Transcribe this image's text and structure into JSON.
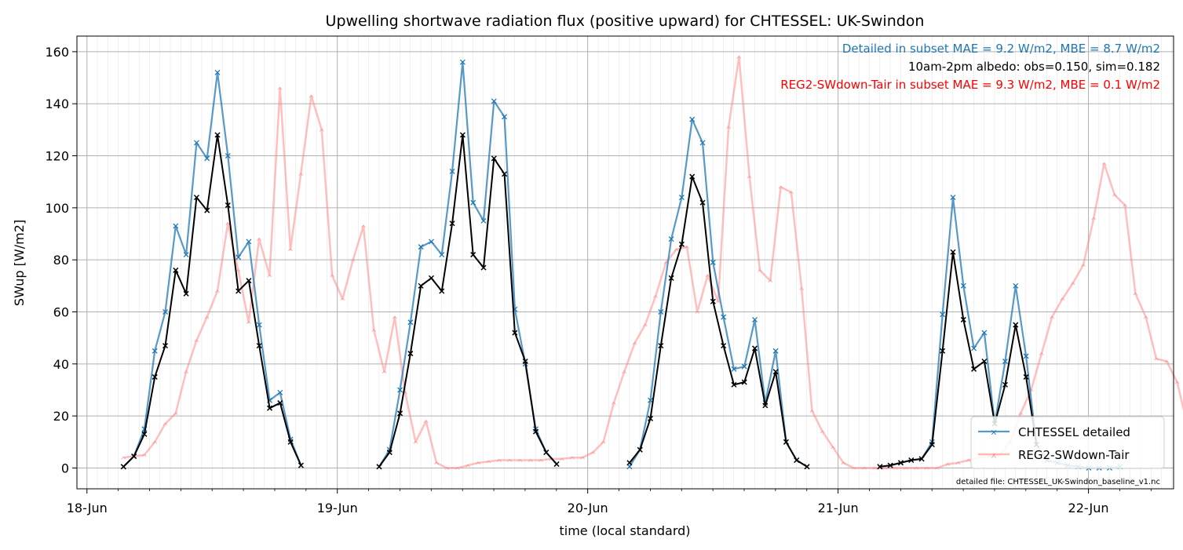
{
  "chart_data": {
    "type": "line",
    "title": "Upwelling shortwave radiation flux (positive upward) for CHTESSEL: UK-Swindon",
    "xlabel": "time (local standard)",
    "ylabel": "SWup [W/m2]",
    "xlim": [
      -0.04,
      4.34
    ],
    "ylim": [
      -8,
      166
    ],
    "x_unit": "days since 18-Jun 00:00",
    "yticks": [
      0,
      20,
      40,
      60,
      80,
      100,
      120,
      140,
      160
    ],
    "xticks": [
      {
        "x": 0,
        "label": "18-Jun"
      },
      {
        "x": 1,
        "label": "19-Jun"
      },
      {
        "x": 2,
        "label": "20-Jun"
      },
      {
        "x": 3,
        "label": "21-Jun"
      },
      {
        "x": 4,
        "label": "22-Jun"
      }
    ],
    "grid": "major and minor",
    "legend": {
      "position": "bottom-right"
    },
    "annotations": {
      "line1": "Detailed in subset MAE = 9.2 W/m2, MBE = 8.7 W/m2",
      "line2": "10am-2pm albedo: obs=0.150, sim=0.182",
      "line3": "REG2-SWdown-Tair in subset MAE = 9.3 W/m2, MBE = 0.1 W/m2",
      "footer": "detailed file: CHTESSEL_UK-Swindon_baseline_v1.nc"
    },
    "series": [
      {
        "name": "CHTESSEL detailed",
        "color": "#1f77b4",
        "segments": [
          {
            "x0": 0.146,
            "y": [
              0.5,
              4.5,
              15,
              45,
              60,
              93,
              82,
              125,
              119,
              152,
              120,
              81,
              87,
              55,
              26,
              29,
              11,
              1
            ]
          },
          {
            "x0": 1.167,
            "y": [
              0.5,
              7,
              30,
              56,
              85,
              87,
              82,
              114,
              156,
              102,
              95,
              141,
              135,
              61,
              40,
              15,
              6,
              1.5
            ]
          },
          {
            "x0": 2.167,
            "y": [
              0.5,
              7,
              26,
              60,
              88,
              104,
              134,
              125,
              79,
              58,
              38,
              39,
              57,
              25,
              45,
              10,
              3,
              0.5
            ]
          },
          {
            "x0": 3.167,
            "y": [
              0.5,
              1,
              2,
              3,
              3.5,
              10,
              59,
              104,
              70,
              46,
              52,
              17,
              41,
              70,
              43,
              9,
              3,
              2,
              1,
              0.5,
              0,
              0,
              0,
              0.5
            ]
          }
        ]
      },
      {
        "name": "REG2-SWdown-Tair",
        "color": "#ff7f7f",
        "y": [
          4,
          4.5,
          5,
          10,
          17,
          21,
          37,
          49,
          58,
          68,
          94,
          76,
          56,
          88,
          74,
          146,
          84,
          113,
          143,
          130,
          74,
          65,
          80,
          93,
          53,
          37,
          58,
          29,
          10,
          18,
          2,
          0,
          0,
          1,
          2,
          2.5,
          3,
          3,
          3,
          3,
          3,
          3.5,
          3.5,
          4,
          4,
          6,
          10,
          25,
          37,
          48,
          55,
          66,
          79,
          84,
          85,
          60,
          74,
          64,
          131,
          158,
          112,
          76,
          72,
          108,
          106,
          69,
          22,
          14,
          8,
          2,
          0,
          0,
          0,
          0,
          0,
          0,
          0,
          0,
          0,
          1.5,
          2,
          3,
          4,
          4.5,
          5,
          10,
          21,
          30,
          44,
          58,
          65,
          71,
          78,
          96,
          117,
          105,
          101,
          67,
          58,
          42,
          41,
          33,
          16,
          21,
          45,
          48,
          4,
          29,
          41,
          18,
          5,
          2,
          1,
          1,
          0,
          0,
          0,
          0,
          0,
          0,
          0,
          0,
          0,
          2.5,
          3,
          3,
          3,
          3,
          2.5,
          2.5,
          2.5,
          2.5,
          2.5,
          2.5,
          3,
          5,
          30,
          52,
          74,
          88,
          67,
          27,
          46,
          44,
          16,
          23,
          43,
          85,
          40,
          20,
          4,
          1,
          1,
          1,
          0.5,
          0.5,
          0.5,
          0.5
        ]
      },
      {
        "name": "",
        "color": "#000000",
        "segments": [
          {
            "x0": 0.146,
            "y": [
              0.5,
              4.5,
              13,
              35,
              47,
              76,
              67,
              104,
              99,
              128,
              101,
              68,
              72,
              47,
              23,
              25,
              10,
              1
            ]
          },
          {
            "x0": 1.167,
            "y": [
              0.5,
              6,
              21,
              44,
              70,
              73,
              68,
              94,
              128,
              82,
              77,
              119,
              113,
              52,
              41,
              14,
              6,
              1.5
            ]
          },
          {
            "x0": 2.167,
            "y": [
              2,
              7,
              19,
              47,
              73,
              86,
              112,
              102,
              64,
              47,
              32,
              33,
              46,
              24,
              37,
              10,
              3,
              0.5
            ]
          },
          {
            "x0": 3.167,
            "y": [
              0.5,
              1,
              2,
              3,
              3.5,
              9,
              45,
              83,
              57,
              38,
              41,
              17,
              32,
              55,
              35,
              9
            ]
          }
        ]
      }
    ]
  }
}
